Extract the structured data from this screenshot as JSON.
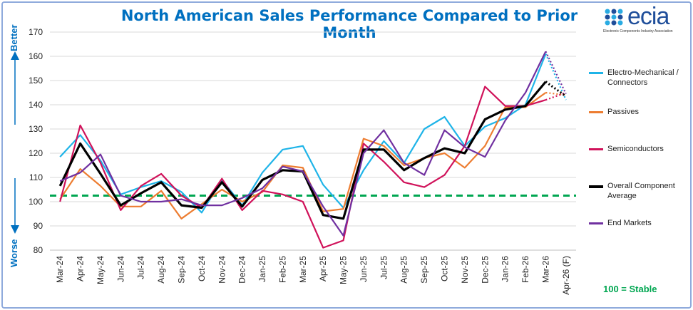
{
  "title": "North American Sales Performance Compared to Prior Month",
  "logo": {
    "name": "ecia",
    "tagline": "Electronic Components Industry Association",
    "color": "#1f4e9a",
    "accent": "#29abe2"
  },
  "side_labels": {
    "better": "Better",
    "worse": "Worse"
  },
  "stable_note": "100 = Stable",
  "chart_data": {
    "type": "line",
    "categories": [
      "Mar-24",
      "Apr-24",
      "May-24",
      "Jun-24",
      "Jul-24",
      "Aug-24",
      "Sep-24",
      "Oct-24",
      "Nov-24",
      "Dec-24",
      "Jan-25",
      "Feb-25",
      "Mar-25",
      "Apr-25",
      "May-25",
      "Jun-25",
      "Jul-25",
      "Aug-25",
      "Sep-25",
      "Oct-25",
      "Nov-25",
      "Dec-25",
      "Jan-26",
      "Feb-26",
      "Mar-26",
      "Apr-26 (F)"
    ],
    "ylim": [
      80,
      170
    ],
    "yticks": [
      80,
      90,
      100,
      110,
      120,
      130,
      140,
      150,
      160,
      170
    ],
    "reference_line": {
      "value": 102.5,
      "color": "#00a651",
      "style": "dashed"
    },
    "forecast_index": 25,
    "series": [
      {
        "name": "Electro-Mechanical / Connectors",
        "color": "#1fb4e8",
        "width": 2.2,
        "values": [
          118.5,
          127.5,
          117,
          103,
          106,
          108.5,
          104,
          95.5,
          109,
          98.5,
          112,
          121.5,
          123,
          107,
          97.5,
          113,
          125,
          116,
          130,
          135,
          123,
          131,
          134.5,
          140,
          161,
          142
        ]
      },
      {
        "name": "Passives",
        "color": "#ed7d31",
        "width": 2.2,
        "values": [
          101,
          113.5,
          106.5,
          98,
          98,
          104.5,
          93,
          99,
          105,
          100,
          104,
          115,
          114,
          96,
          97,
          126,
          123,
          115,
          118,
          120,
          114,
          123,
          139,
          139,
          145,
          144
        ]
      },
      {
        "name": "Semiconductors",
        "color": "#d0125a",
        "width": 2.2,
        "values": [
          100,
          131.5,
          116,
          96.5,
          106.5,
          111.5,
          102.5,
          97.5,
          109.5,
          96.5,
          104.5,
          103,
          100,
          81,
          84,
          124,
          116.5,
          108,
          106,
          111,
          123,
          147.5,
          139.5,
          139.5,
          142,
          145
        ]
      },
      {
        "name": "Overall Component Average",
        "color": "#000000",
        "width": 3.2,
        "values": [
          106.5,
          124,
          111.5,
          98.5,
          103.5,
          108,
          98.5,
          97.5,
          108,
          98,
          109,
          113,
          112.5,
          94.5,
          93,
          121.5,
          121.5,
          113,
          118,
          122,
          120,
          134,
          138,
          139.5,
          149.5,
          143.5
        ]
      },
      {
        "name": "End Markets",
        "color": "#7030a0",
        "width": 2.2,
        "values": [
          108.5,
          112,
          119.5,
          102.5,
          100,
          100,
          101,
          98.5,
          98.5,
          101.5,
          105.5,
          114.5,
          112.5,
          98,
          86,
          120,
          129.5,
          116,
          111,
          129.5,
          122.5,
          118.5,
          133.5,
          145,
          162,
          144.5
        ]
      }
    ]
  },
  "legend_items": [
    "Electro-Mechanical / Connectors",
    "Passives",
    "Semiconductors",
    "Overall Component Average",
    "End Markets"
  ]
}
